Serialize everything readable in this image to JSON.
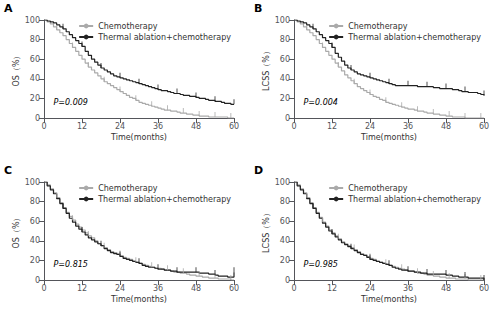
{
  "chart_data": [
    {
      "type": "step",
      "title": "A",
      "xlabel": "Time(months)",
      "ylabel": "OS（%）",
      "annotation": "P=0.009",
      "legend": "upper right",
      "grid": false,
      "xlim": [
        0,
        60
      ],
      "ylim": [
        0,
        100
      ],
      "xticks": [
        0,
        12,
        24,
        36,
        48,
        60
      ],
      "yticks": [
        0,
        20,
        40,
        60,
        80,
        100
      ],
      "x": [
        0,
        1,
        2,
        3,
        4,
        5,
        6,
        7,
        8,
        9,
        10,
        11,
        12,
        13,
        14,
        15,
        16,
        17,
        18,
        19,
        20,
        21,
        22,
        23,
        24,
        25,
        26,
        27,
        28,
        29,
        30,
        31,
        32,
        33,
        34,
        35,
        36,
        37,
        38,
        39,
        40,
        41,
        42,
        43,
        44,
        45,
        46,
        47,
        48,
        49,
        50,
        51,
        52,
        53,
        54,
        55,
        56,
        57,
        58,
        59,
        60
      ],
      "series": [
        {
          "name": "Chemotherapy",
          "color": "#aaaaaa",
          "marker": "tick",
          "values": [
            100,
            98,
            96,
            93,
            90,
            87,
            84,
            80,
            76,
            72,
            68,
            64,
            60,
            56,
            52,
            49,
            46,
            43,
            40,
            37,
            35,
            33,
            31,
            29,
            27,
            25,
            23,
            21,
            20,
            18,
            16,
            15,
            14,
            13,
            12,
            11,
            10,
            9,
            8,
            8,
            7,
            7,
            6,
            5,
            5,
            4,
            4,
            3,
            3,
            2,
            2,
            2,
            1,
            1,
            1,
            1,
            1,
            1,
            0,
            0,
            0
          ],
          "censor_x": [
            4,
            9,
            14,
            19,
            24,
            29,
            34,
            39,
            44,
            49,
            54,
            59
          ]
        },
        {
          "name": "Thermal ablation+chemotherapy",
          "color": "#222222",
          "marker": "tick",
          "values": [
            100,
            99,
            98,
            97,
            95,
            93,
            91,
            88,
            85,
            82,
            79,
            76,
            73,
            68,
            64,
            60,
            57,
            54,
            51,
            49,
            47,
            45,
            43,
            42,
            41,
            40,
            39,
            38,
            37,
            36,
            35,
            34,
            33,
            32,
            31,
            30,
            29,
            28,
            28,
            27,
            26,
            25,
            25,
            24,
            23,
            23,
            22,
            22,
            21,
            20,
            20,
            19,
            18,
            18,
            17,
            17,
            16,
            15,
            15,
            14,
            14
          ],
          "censor_x": [
            6,
            12,
            18,
            24,
            30,
            36,
            42,
            48,
            54,
            60
          ]
        }
      ]
    },
    {
      "type": "step",
      "title": "B",
      "xlabel": "Time(months)",
      "ylabel": "LCSS（%）",
      "annotation": "P=0.004",
      "legend": "upper right",
      "grid": false,
      "xlim": [
        0,
        60
      ],
      "ylim": [
        0,
        100
      ],
      "xticks": [
        0,
        12,
        24,
        36,
        48,
        60
      ],
      "yticks": [
        0,
        20,
        40,
        60,
        80,
        100
      ],
      "x": [
        0,
        1,
        2,
        3,
        4,
        5,
        6,
        7,
        8,
        9,
        10,
        11,
        12,
        13,
        14,
        15,
        16,
        17,
        18,
        19,
        20,
        21,
        22,
        23,
        24,
        25,
        26,
        27,
        28,
        29,
        30,
        31,
        32,
        33,
        34,
        35,
        36,
        37,
        38,
        39,
        40,
        41,
        42,
        43,
        44,
        45,
        46,
        47,
        48,
        49,
        50,
        51,
        52,
        53,
        54,
        55,
        56,
        57,
        58,
        59,
        60
      ],
      "series": [
        {
          "name": "Chemotherapy",
          "color": "#aaaaaa",
          "marker": "tick",
          "values": [
            100,
            98,
            96,
            93,
            90,
            87,
            84,
            80,
            76,
            72,
            68,
            64,
            60,
            56,
            52,
            48,
            44,
            41,
            38,
            35,
            32,
            30,
            28,
            26,
            24,
            22,
            21,
            19,
            18,
            16,
            15,
            14,
            13,
            12,
            11,
            10,
            9,
            9,
            8,
            7,
            7,
            6,
            5,
            5,
            4,
            4,
            3,
            3,
            2,
            2,
            1,
            1,
            1,
            1,
            0,
            0,
            0,
            0,
            0,
            0,
            0
          ],
          "censor_x": [
            4,
            9,
            14,
            19,
            24,
            29,
            34,
            39,
            44,
            49,
            54,
            59
          ]
        },
        {
          "name": "Thermal ablation+chemotherapy",
          "color": "#222222",
          "marker": "tick",
          "values": [
            100,
            99,
            98,
            97,
            95,
            93,
            91,
            88,
            85,
            82,
            79,
            76,
            72,
            66,
            62,
            58,
            54,
            51,
            49,
            47,
            45,
            44,
            43,
            42,
            41,
            40,
            39,
            38,
            37,
            36,
            35,
            34,
            33,
            33,
            33,
            33,
            33,
            33,
            33,
            32,
            32,
            32,
            32,
            32,
            31,
            31,
            30,
            30,
            30,
            30,
            29,
            29,
            28,
            27,
            27,
            26,
            26,
            26,
            25,
            24,
            23
          ],
          "censor_x": [
            6,
            12,
            18,
            24,
            30,
            36,
            42,
            48,
            54,
            60
          ]
        }
      ]
    },
    {
      "type": "step",
      "title": "C",
      "xlabel": "Time(months)",
      "ylabel": "OS（%）",
      "annotation": "P=0.815",
      "legend": "upper right",
      "grid": false,
      "xlim": [
        0,
        60
      ],
      "ylim": [
        0,
        100
      ],
      "xticks": [
        0,
        12,
        24,
        36,
        48,
        60
      ],
      "yticks": [
        0,
        20,
        40,
        60,
        80,
        100
      ],
      "x": [
        0,
        1,
        2,
        3,
        4,
        5,
        6,
        7,
        8,
        9,
        10,
        11,
        12,
        13,
        14,
        15,
        16,
        17,
        18,
        19,
        20,
        21,
        22,
        23,
        24,
        25,
        26,
        27,
        28,
        29,
        30,
        31,
        32,
        33,
        34,
        35,
        36,
        37,
        38,
        39,
        40,
        41,
        42,
        43,
        44,
        45,
        46,
        47,
        48,
        49,
        50,
        51,
        52,
        53,
        54,
        55,
        56,
        57,
        58,
        59,
        60
      ],
      "series": [
        {
          "name": "Chemotherapy",
          "color": "#aaaaaa",
          "marker": "tick",
          "values": [
            100,
            97,
            93,
            89,
            84,
            79,
            74,
            69,
            65,
            61,
            57,
            54,
            51,
            48,
            45,
            43,
            40,
            37,
            35,
            33,
            31,
            29,
            28,
            27,
            25,
            23,
            22,
            21,
            19,
            18,
            17,
            16,
            15,
            14,
            13,
            12,
            12,
            11,
            10,
            10,
            9,
            8,
            8,
            7,
            7,
            6,
            5,
            5,
            4,
            4,
            3,
            3,
            2,
            2,
            2,
            1,
            1,
            1,
            1,
            0,
            0
          ],
          "censor_x": [
            4,
            9,
            14,
            19,
            24,
            29,
            34,
            39,
            44,
            49,
            54,
            59
          ]
        },
        {
          "name": "Thermal ablation+chemotherapy",
          "color": "#222222",
          "marker": "tick",
          "values": [
            100,
            96,
            92,
            88,
            83,
            78,
            73,
            68,
            63,
            59,
            55,
            52,
            49,
            46,
            43,
            41,
            39,
            37,
            35,
            32,
            30,
            28,
            27,
            26,
            24,
            22,
            21,
            20,
            19,
            18,
            17,
            15,
            14,
            13,
            13,
            12,
            11,
            11,
            10,
            10,
            9,
            9,
            8,
            8,
            8,
            8,
            8,
            8,
            8,
            7,
            7,
            7,
            6,
            6,
            5,
            4,
            4,
            4,
            3,
            3,
            8
          ],
          "censor_x": [
            6,
            12,
            18,
            24,
            30,
            36,
            42,
            48,
            54,
            60
          ]
        }
      ]
    },
    {
      "type": "step",
      "title": "D",
      "xlabel": "Time(months)",
      "ylabel": "LCSS（%）",
      "annotation": "P=0.985",
      "legend": "upper right",
      "grid": false,
      "xlim": [
        0,
        60
      ],
      "ylim": [
        0,
        100
      ],
      "xticks": [
        0,
        12,
        24,
        36,
        48,
        60
      ],
      "yticks": [
        0,
        20,
        40,
        60,
        80,
        100
      ],
      "x": [
        0,
        1,
        2,
        3,
        4,
        5,
        6,
        7,
        8,
        9,
        10,
        11,
        12,
        13,
        14,
        15,
        16,
        17,
        18,
        19,
        20,
        21,
        22,
        23,
        24,
        25,
        26,
        27,
        28,
        29,
        30,
        31,
        32,
        33,
        34,
        35,
        36,
        37,
        38,
        39,
        40,
        41,
        42,
        43,
        44,
        45,
        46,
        47,
        48,
        49,
        50,
        51,
        52,
        53,
        54,
        55,
        56,
        57,
        58,
        59,
        60
      ],
      "series": [
        {
          "name": "Chemotherapy",
          "color": "#aaaaaa",
          "marker": "tick",
          "values": [
            100,
            97,
            93,
            89,
            84,
            79,
            74,
            69,
            64,
            59,
            55,
            51,
            48,
            45,
            42,
            39,
            37,
            35,
            33,
            31,
            29,
            27,
            26,
            24,
            22,
            21,
            19,
            18,
            17,
            16,
            15,
            14,
            13,
            12,
            11,
            10,
            9,
            9,
            8,
            7,
            7,
            6,
            5,
            5,
            4,
            4,
            3,
            3,
            2,
            2,
            2,
            1,
            1,
            1,
            1,
            0,
            0,
            0,
            0,
            0,
            0
          ],
          "censor_x": [
            4,
            9,
            14,
            19,
            24,
            29,
            34,
            39,
            44,
            49,
            54,
            59
          ]
        },
        {
          "name": "Thermal ablation+chemotherapy",
          "color": "#222222",
          "marker": "tick",
          "values": [
            100,
            96,
            92,
            88,
            83,
            78,
            73,
            68,
            63,
            58,
            54,
            50,
            47,
            44,
            41,
            38,
            36,
            34,
            32,
            30,
            28,
            26,
            25,
            23,
            21,
            20,
            19,
            18,
            17,
            16,
            15,
            13,
            12,
            11,
            10,
            10,
            9,
            9,
            8,
            8,
            7,
            7,
            6,
            6,
            6,
            6,
            6,
            6,
            5,
            5,
            4,
            4,
            3,
            3,
            3,
            2,
            2,
            2,
            2,
            2,
            0
          ],
          "censor_x": [
            6,
            12,
            18,
            24,
            30,
            36,
            42,
            48,
            54,
            60
          ]
        }
      ]
    }
  ]
}
